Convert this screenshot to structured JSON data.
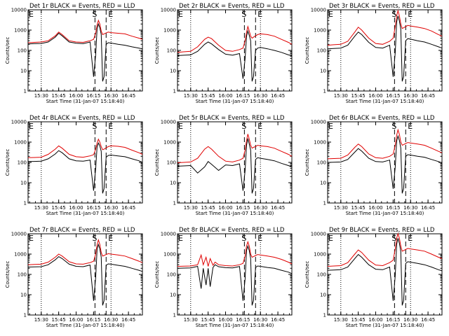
{
  "chart_data": {
    "type": "line",
    "xlabel": "Start Time (31-Jan-07 15:18:40)",
    "ylabel": "Counts/sec",
    "x_ticks": [
      "15:30",
      "15:45",
      "16:00",
      "16:15",
      "16:30",
      "16:45"
    ],
    "x_tick_hours": [
      15.5,
      15.75,
      16.0,
      16.25,
      16.5,
      16.75
    ],
    "xlim_hours": [
      15.3111,
      16.95
    ],
    "y_ticks": [
      "1",
      "10",
      "100",
      "1000",
      "10000"
    ],
    "ylim": [
      1,
      10000
    ],
    "y_scale": "log",
    "grid": false,
    "dotted_lines_hours": [
      15.5,
      16.5
    ],
    "dashed_lines_hours": [
      16.27,
      16.43
    ],
    "marker_labels": [
      "S",
      "E"
    ],
    "left_marker": "E",
    "series_colors": {
      "events": "#000000",
      "lld": "#e00000"
    },
    "panels": [
      {
        "title": "Det 1r BLACK = Events, RED = LLD",
        "x": [
          15.3111,
          15.4,
          15.5,
          15.6,
          15.7,
          15.75,
          15.8,
          15.9,
          16.0,
          16.1,
          16.2,
          16.25,
          16.28,
          16.3,
          16.32,
          16.34,
          16.36,
          16.38,
          16.4,
          16.43,
          16.46,
          16.5,
          16.6,
          16.7,
          16.8,
          16.9,
          16.95
        ],
        "lld": [
          240,
          250,
          260,
          300,
          520,
          800,
          600,
          300,
          260,
          250,
          300,
          350,
          700,
          1800,
          3000,
          2000,
          900,
          600,
          650,
          720,
          800,
          750,
          700,
          650,
          500,
          400,
          350
        ],
        "events": [
          210,
          215,
          220,
          260,
          450,
          700,
          520,
          260,
          225,
          215,
          260,
          5,
          60,
          1200,
          2000,
          1300,
          600,
          3,
          5,
          200,
          240,
          230,
          200,
          180,
          150,
          130,
          120
        ]
      },
      {
        "title": "Det 2r BLACK = Events, RED = LLD",
        "x": [
          15.3111,
          15.4,
          15.5,
          15.6,
          15.7,
          15.75,
          15.8,
          15.9,
          16.0,
          16.1,
          16.2,
          16.25,
          16.28,
          16.3,
          16.32,
          16.34,
          16.36,
          16.38,
          16.4,
          16.43,
          16.46,
          16.5,
          16.6,
          16.7,
          16.8,
          16.9,
          16.95
        ],
        "lld": [
          80,
          85,
          90,
          150,
          350,
          450,
          380,
          180,
          100,
          90,
          110,
          130,
          300,
          800,
          1500,
          900,
          500,
          400,
          450,
          520,
          600,
          650,
          600,
          500,
          350,
          250,
          200
        ],
        "events": [
          55,
          58,
          60,
          90,
          200,
          260,
          210,
          110,
          65,
          58,
          70,
          4,
          40,
          500,
          900,
          550,
          300,
          3,
          5,
          100,
          130,
          140,
          120,
          100,
          80,
          60,
          55
        ]
      },
      {
        "title": "Det 3r BLACK = Events, RED = LLD",
        "x": [
          15.3111,
          15.4,
          15.5,
          15.6,
          15.7,
          15.75,
          15.8,
          15.9,
          16.0,
          16.1,
          16.2,
          16.25,
          16.28,
          16.3,
          16.32,
          16.34,
          16.36,
          16.38,
          16.4,
          16.43,
          16.46,
          16.5,
          16.6,
          16.7,
          16.8,
          16.9,
          16.95
        ],
        "lld": [
          180,
          190,
          200,
          280,
          800,
          1400,
          1000,
          400,
          220,
          200,
          280,
          400,
          1500,
          5000,
          9000,
          5000,
          2000,
          1200,
          1300,
          1500,
          1700,
          1600,
          1400,
          1200,
          900,
          600,
          500
        ],
        "events": [
          120,
          125,
          130,
          180,
          500,
          800,
          600,
          250,
          140,
          130,
          180,
          5,
          80,
          2500,
          5000,
          2800,
          1100,
          3,
          5,
          300,
          380,
          360,
          300,
          260,
          200,
          150,
          130
        ]
      },
      {
        "title": "Det 4r BLACK = Events, RED = LLD",
        "x": [
          15.3111,
          15.4,
          15.5,
          15.6,
          15.7,
          15.75,
          15.8,
          15.9,
          16.0,
          16.1,
          16.2,
          16.25,
          16.28,
          16.3,
          16.32,
          16.34,
          16.36,
          16.38,
          16.4,
          16.43,
          16.46,
          16.5,
          16.6,
          16.7,
          16.8,
          16.9,
          16.95
        ],
        "lld": [
          170,
          175,
          180,
          250,
          450,
          650,
          500,
          250,
          190,
          180,
          210,
          240,
          450,
          900,
          1400,
          1000,
          600,
          420,
          450,
          520,
          600,
          650,
          620,
          550,
          400,
          300,
          250
        ],
        "events": [
          110,
          112,
          115,
          150,
          260,
          380,
          300,
          150,
          120,
          115,
          130,
          4,
          50,
          600,
          900,
          650,
          350,
          3,
          5,
          180,
          220,
          230,
          210,
          190,
          150,
          120,
          100
        ]
      },
      {
        "title": "Det 5r BLACK = Events, RED = LLD",
        "x": [
          15.3111,
          15.4,
          15.5,
          15.6,
          15.7,
          15.75,
          15.8,
          15.9,
          16.0,
          16.1,
          16.2,
          16.25,
          16.28,
          16.3,
          16.32,
          16.34,
          16.36,
          16.38,
          16.4,
          16.43,
          16.46,
          16.5,
          16.6,
          16.7,
          16.8,
          16.9,
          16.95
        ],
        "lld": [
          95,
          100,
          105,
          160,
          450,
          600,
          450,
          200,
          115,
          105,
          130,
          160,
          400,
          1200,
          2500,
          1400,
          700,
          500,
          550,
          600,
          700,
          650,
          600,
          500,
          350,
          250,
          200
        ],
        "events": [
          65,
          67,
          70,
          30,
          60,
          110,
          80,
          40,
          75,
          70,
          85,
          4,
          40,
          700,
          1500,
          800,
          400,
          3,
          5,
          140,
          170,
          160,
          140,
          120,
          90,
          70,
          60
        ]
      },
      {
        "title": "Det 6r BLACK = Events, RED = LLD",
        "x": [
          15.3111,
          15.4,
          15.5,
          15.6,
          15.7,
          15.75,
          15.8,
          15.9,
          16.0,
          16.1,
          16.2,
          16.25,
          16.28,
          16.3,
          16.32,
          16.34,
          16.36,
          16.38,
          16.4,
          16.43,
          16.46,
          16.5,
          16.6,
          16.7,
          16.8,
          16.9,
          16.95
        ],
        "lld": [
          150,
          155,
          160,
          230,
          550,
          800,
          600,
          260,
          170,
          160,
          200,
          260,
          700,
          2200,
          4000,
          2400,
          1000,
          700,
          750,
          850,
          950,
          900,
          800,
          700,
          500,
          350,
          300
        ],
        "events": [
          100,
          102,
          105,
          140,
          320,
          480,
          360,
          160,
          110,
          105,
          130,
          5,
          60,
          1100,
          2000,
          1200,
          500,
          3,
          5,
          200,
          240,
          230,
          200,
          180,
          140,
          110,
          95
        ]
      },
      {
        "title": "Det 7r BLACK = Events, RED = LLD",
        "x": [
          15.3111,
          15.4,
          15.5,
          15.6,
          15.7,
          15.75,
          15.8,
          15.9,
          16.0,
          16.1,
          16.2,
          16.25,
          16.28,
          16.3,
          16.32,
          16.34,
          16.36,
          16.38,
          16.4,
          16.43,
          16.46,
          16.5,
          16.6,
          16.7,
          16.8,
          16.9,
          16.95
        ],
        "lld": [
          300,
          310,
          320,
          400,
          700,
          1000,
          800,
          420,
          330,
          320,
          380,
          450,
          1000,
          3000,
          5000,
          3000,
          1200,
          800,
          850,
          950,
          1050,
          1000,
          900,
          800,
          600,
          450,
          380
        ],
        "events": [
          230,
          235,
          240,
          300,
          520,
          750,
          600,
          320,
          250,
          240,
          290,
          5,
          70,
          1800,
          3000,
          1800,
          700,
          3,
          5,
          280,
          330,
          320,
          280,
          250,
          200,
          160,
          140
        ]
      },
      {
        "title": "Det 8r BLACK = Events, RED = LLD",
        "x": [
          15.3111,
          15.4,
          15.5,
          15.6,
          15.65,
          15.68,
          15.72,
          15.75,
          15.78,
          15.82,
          15.85,
          15.9,
          16.0,
          16.1,
          16.2,
          16.25,
          16.28,
          16.3,
          16.32,
          16.34,
          16.36,
          16.38,
          16.4,
          16.43,
          16.46,
          16.5,
          16.6,
          16.7,
          16.8,
          16.9,
          16.95
        ],
        "lld": [
          250,
          255,
          260,
          300,
          900,
          300,
          700,
          250,
          600,
          280,
          400,
          300,
          270,
          260,
          300,
          350,
          800,
          2500,
          4000,
          2500,
          1000,
          700,
          750,
          850,
          950,
          900,
          800,
          700,
          550,
          400,
          330
        ],
        "events": [
          200,
          205,
          210,
          250,
          20,
          200,
          30,
          200,
          25,
          220,
          300,
          240,
          215,
          210,
          245,
          5,
          60,
          1500,
          2500,
          1500,
          600,
          3,
          5,
          220,
          260,
          250,
          220,
          200,
          160,
          130,
          110
        ]
      },
      {
        "title": "Det 9r BLACK = Events, RED = LLD",
        "x": [
          15.3111,
          15.4,
          15.5,
          15.6,
          15.7,
          15.75,
          15.8,
          15.9,
          16.0,
          16.1,
          16.2,
          16.25,
          16.28,
          16.3,
          16.32,
          16.34,
          16.36,
          16.38,
          16.4,
          16.43,
          16.46,
          16.5,
          16.6,
          16.7,
          16.8,
          16.9,
          16.95
        ],
        "lld": [
          250,
          260,
          270,
          380,
          1000,
          1600,
          1200,
          500,
          290,
          270,
          380,
          500,
          1800,
          6000,
          10000,
          6000,
          2500,
          1400,
          1500,
          1700,
          1900,
          1800,
          1600,
          1400,
          1000,
          700,
          600
        ],
        "events": [
          160,
          165,
          170,
          230,
          600,
          950,
          700,
          300,
          180,
          170,
          230,
          5,
          90,
          3000,
          6000,
          3400,
          1300,
          3,
          5,
          350,
          420,
          400,
          350,
          300,
          230,
          170,
          150
        ]
      }
    ]
  }
}
